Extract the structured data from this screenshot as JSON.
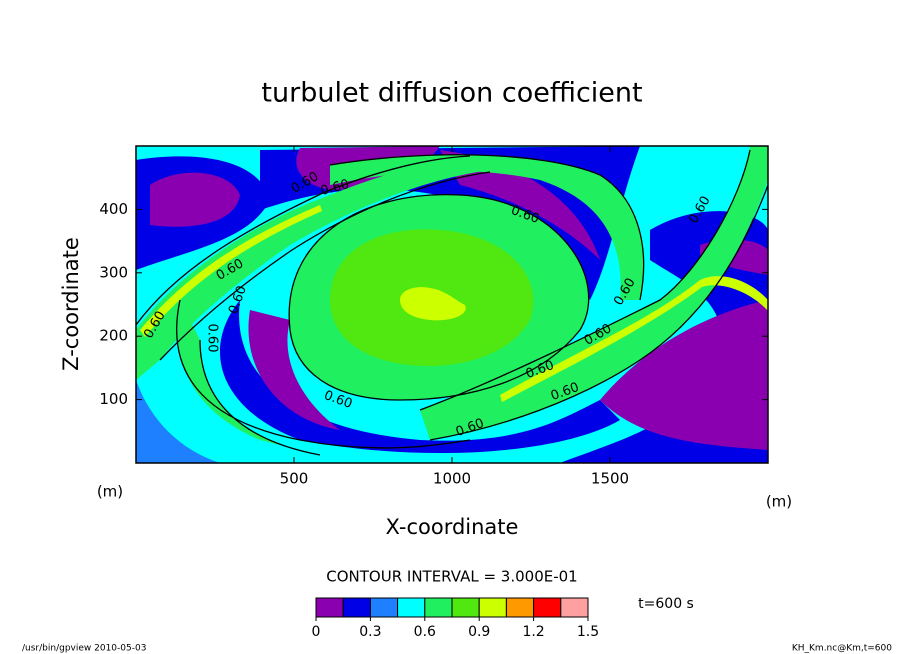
{
  "chart_data": {
    "type": "contour",
    "title": "turbulet diffusion coefficient",
    "xlabel": "X-coordinate",
    "ylabel": "Z-coordinate",
    "xunit": "(m)",
    "yunit": "(m)",
    "xlim": [
      0,
      2000
    ],
    "ylim": [
      0,
      500
    ],
    "xticks": [
      500,
      1000,
      1500
    ],
    "yticks": [
      100,
      200,
      300,
      400
    ],
    "contour_interval_text": "CONTOUR INTERVAL = 3.000E-01",
    "contour_label": {
      "value": 0.6,
      "label": "0.60"
    },
    "levels": [
      0,
      0.15,
      0.3,
      0.45,
      0.6,
      0.75,
      0.9,
      1.05,
      1.2,
      1.35,
      1.5
    ],
    "colors": [
      "#8a00b0",
      "#0000e6",
      "#1e80ff",
      "#00ffff",
      "#20f060",
      "#50e810",
      "#ccff00",
      "#ff9900",
      "#ff0000",
      "#ffa0a0"
    ],
    "colorbar_ticks": [
      0,
      0.3,
      0.6,
      0.9,
      1.2,
      1.5
    ],
    "time_label": "t=600 s",
    "footer_left": "/usr/bin/gpview  2010-05-03",
    "footer_right": "KH_Km.nc@Km,t=600"
  }
}
